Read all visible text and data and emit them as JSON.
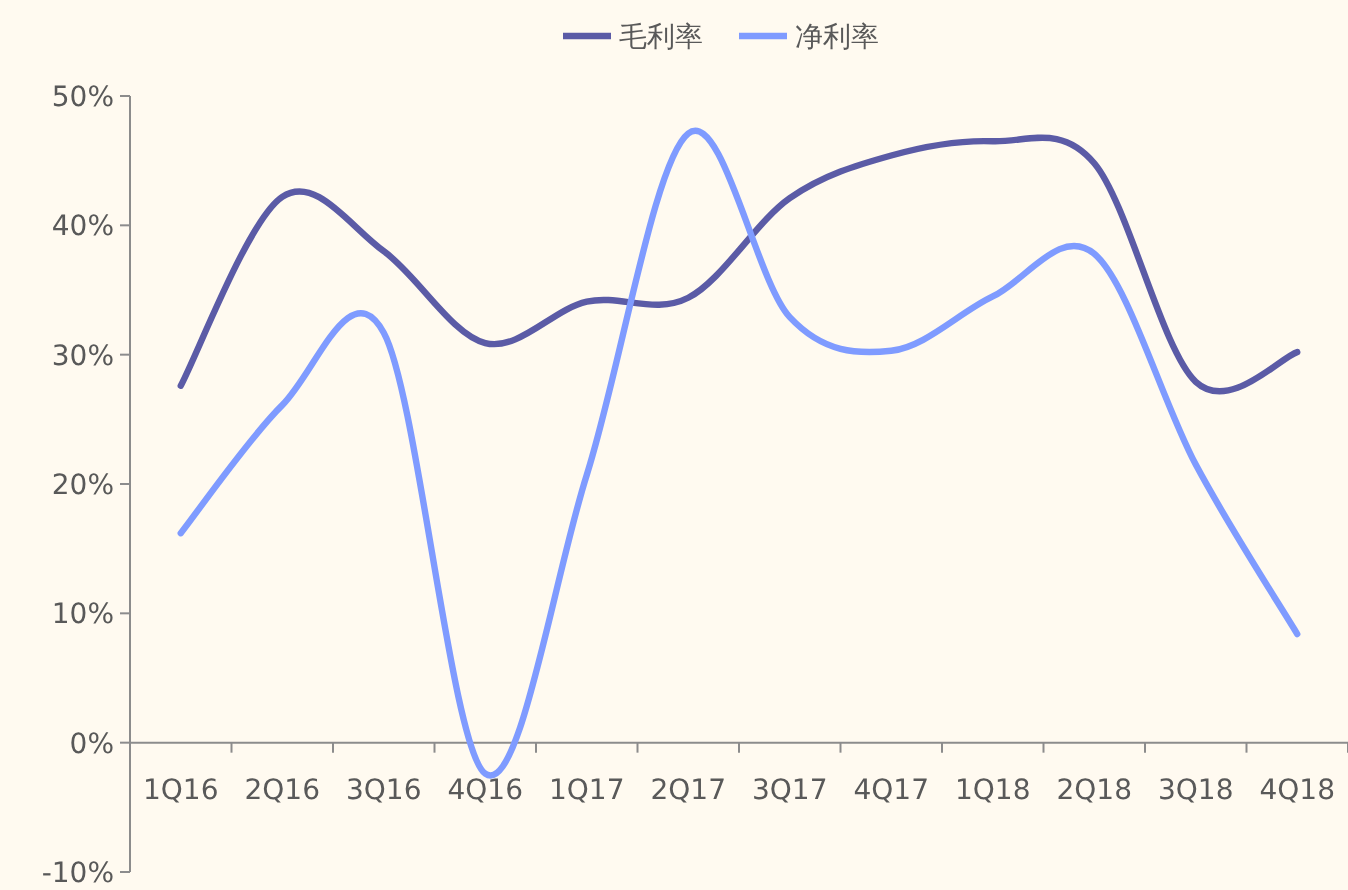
{
  "chart_data": {
    "type": "line",
    "categories": [
      "1Q16",
      "2Q16",
      "3Q16",
      "4Q16",
      "1Q17",
      "2Q17",
      "3Q17",
      "4Q17",
      "1Q18",
      "2Q18",
      "3Q18",
      "4Q18"
    ],
    "series": [
      {
        "name": "毛利率",
        "color": "#5b5ba6",
        "values": [
          27.6,
          42.2,
          38.0,
          30.9,
          34.1,
          34.4,
          42.1,
          45.4,
          46.5,
          44.8,
          27.9,
          30.2
        ]
      },
      {
        "name": "净利率",
        "color": "#7f9bff",
        "values": [
          16.2,
          26.1,
          31.7,
          -2.4,
          20.7,
          47.1,
          32.9,
          30.3,
          34.5,
          37.8,
          21.5,
          8.4
        ]
      }
    ],
    "ylim": [
      -10,
      50
    ],
    "yticks": [
      {
        "value": -10,
        "label": "-10%"
      },
      {
        "value": 0,
        "label": "0%"
      },
      {
        "value": 10,
        "label": "10%"
      },
      {
        "value": 20,
        "label": "20%"
      },
      {
        "value": 30,
        "label": "30%"
      },
      {
        "value": 40,
        "label": "40%"
      },
      {
        "value": 50,
        "label": "50%"
      }
    ],
    "legend": "top"
  }
}
